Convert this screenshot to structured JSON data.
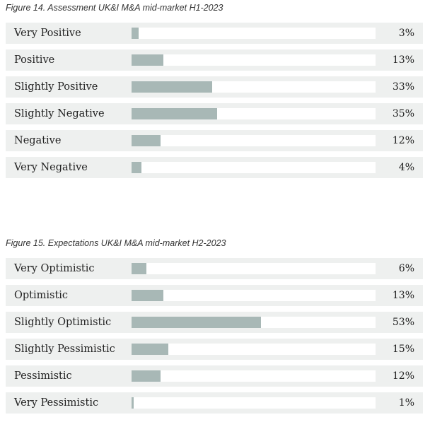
{
  "colors": {
    "bar_fill": "#a8b8b6",
    "row_background": "#eef0ef",
    "track": "#ffffff"
  },
  "chart_data": [
    {
      "type": "bar",
      "orientation": "horizontal",
      "title": "Figure 14.  Assessment UK&I M&A mid-market H1-2023",
      "categories": [
        "Very Positive",
        "Positive",
        "Slightly Positive",
        "Slightly Negative",
        "Negative",
        "Very Negative"
      ],
      "values": [
        3,
        13,
        33,
        35,
        12,
        4
      ],
      "value_labels": [
        "3%",
        "13%",
        "33%",
        "35%",
        "12%",
        "4%"
      ],
      "xlim": [
        0,
        100
      ],
      "unit": "%",
      "grid": false
    },
    {
      "type": "bar",
      "orientation": "horizontal",
      "title": "Figure 15.  Expectations  UK&I M&A mid-market H2-2023",
      "categories": [
        "Very Optimistic",
        "Optimistic",
        "Slightly Optimistic",
        "Slightly Pessimistic",
        "Pessimistic",
        "Very Pessimistic"
      ],
      "values": [
        6,
        13,
        53,
        15,
        12,
        1
      ],
      "value_labels": [
        "6%",
        "13%",
        "53%",
        "15%",
        "12%",
        "1%"
      ],
      "xlim": [
        0,
        100
      ],
      "unit": "%",
      "grid": false
    }
  ]
}
